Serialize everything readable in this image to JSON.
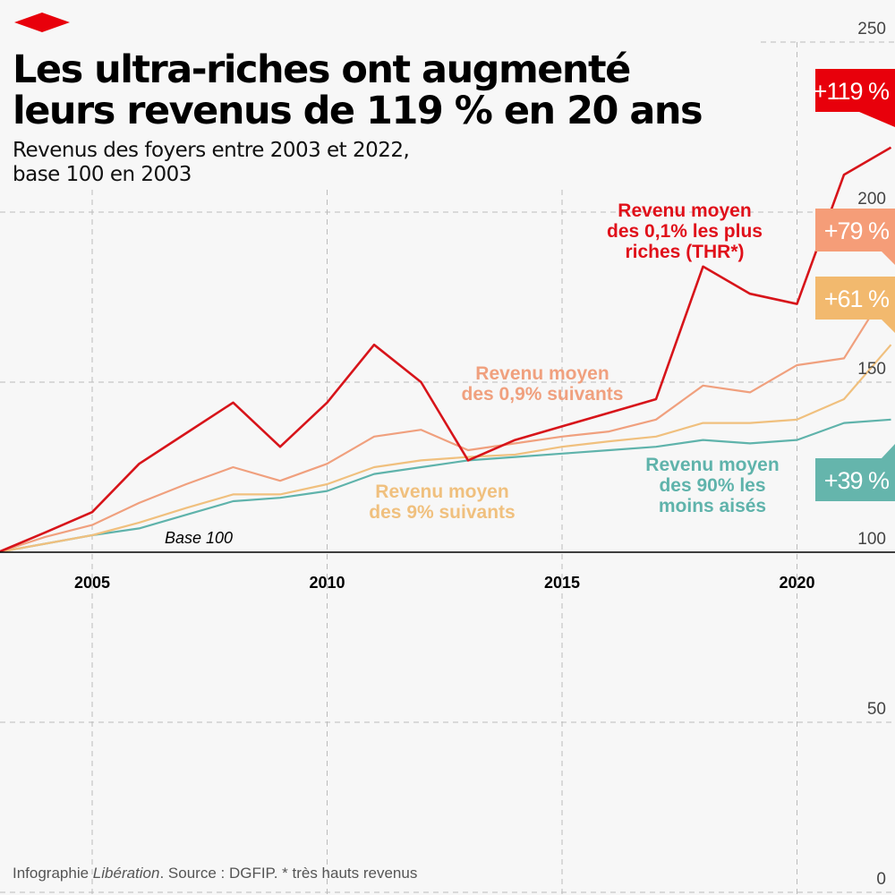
{
  "header": {
    "title_line1": "Les ultra-riches ont augmenté",
    "title_line2": "leurs revenus de 119 % en 20 ans",
    "subtitle_line1": "Revenus des foyers entre 2003 et 2022,",
    "subtitle_line2": "base 100 en 2003",
    "logo": "Libération"
  },
  "footer": {
    "credit_prefix": "Infographie ",
    "credit_brand": "Libération",
    "source": ". Source : DGFIP. * très hauts revenus"
  },
  "chart_data": {
    "type": "line",
    "title": "Les ultra-riches ont augmenté leurs revenus de 119 % en 20 ans",
    "subtitle": "Revenus des foyers entre 2003 et 2022, base 100 en 2003",
    "x": [
      2003,
      2004,
      2005,
      2006,
      2007,
      2008,
      2009,
      2010,
      2011,
      2012,
      2013,
      2014,
      2015,
      2016,
      2017,
      2018,
      2019,
      2020,
      2021,
      2022
    ],
    "x_ticks": [
      "2005",
      "2010",
      "2015",
      "2020"
    ],
    "x_tick_values": [
      2005,
      2010,
      2015,
      2020
    ],
    "y_ticks": [
      "0",
      "50",
      "100",
      "150",
      "200",
      "250"
    ],
    "y_tick_values": [
      0,
      50,
      100,
      150,
      200,
      250
    ],
    "ylim": [
      0,
      250
    ],
    "grid": true,
    "baseline_label": "Base 100",
    "series": [
      {
        "name": "Revenu moyen des 0,1% les plus riches (THR*)",
        "label_lines": [
          "Revenu moyen",
          "des 0,1% les plus",
          "riches (THR*)"
        ],
        "color": "#d7141a",
        "change_label": "+119 %",
        "box_color": "#e8000b",
        "values": [
          100,
          105.8,
          111.8,
          126,
          135,
          144,
          131,
          144,
          161,
          150,
          127,
          133,
          137,
          141,
          145,
          184,
          176,
          173,
          211,
          219
        ]
      },
      {
        "name": "Revenu moyen des 0,9% suivants",
        "label_lines": [
          "Revenu moyen",
          "des 0,9% suivants"
        ],
        "color": "#f0a07e",
        "change_label": "+79 %",
        "box_color": "#f59d78",
        "values": [
          100,
          104.5,
          108,
          114.5,
          120,
          125,
          121,
          126,
          134,
          136,
          130,
          132,
          134,
          135.5,
          139,
          149,
          147,
          155,
          157,
          179
        ]
      },
      {
        "name": "Revenu moyen des 9% suivants",
        "label_lines": [
          "Revenu moyen",
          "des 9% suivants"
        ],
        "color": "#f0c07e",
        "change_label": "+61 %",
        "box_color": "#f2b96e",
        "values": [
          100,
          102.5,
          105,
          108.7,
          113,
          117,
          117,
          120,
          125,
          127,
          128,
          128.7,
          131,
          132.6,
          134,
          138,
          138,
          139,
          145,
          161
        ]
      },
      {
        "name": "Revenu moyen des 90% les moins aisés",
        "label_lines": [
          "Revenu moyen",
          "des 90% les",
          "moins aisés"
        ],
        "color": "#5fb3ab",
        "change_label": "+39 %",
        "box_color": "#65b5ac",
        "values": [
          100,
          102.5,
          105,
          107,
          111,
          115,
          116,
          118,
          123,
          125,
          127,
          128,
          129,
          130,
          131,
          133,
          132,
          133,
          138,
          139
        ]
      }
    ]
  }
}
